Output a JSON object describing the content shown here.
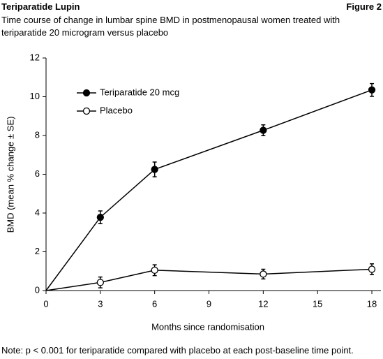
{
  "header": {
    "title": "Teriparatide Lupin",
    "figure": "Figure 2"
  },
  "chart_data": {
    "type": "line",
    "title": "Time course of change in lumbar spine BMD in postmenopausal women treated with teriparatide 20 microgram versus placebo",
    "xlabel": "Months since randomisation",
    "ylabel": "BMD (mean % change ± SE)",
    "x": [
      0,
      3,
      6,
      12,
      18
    ],
    "series": [
      {
        "name": "Teriparatide 20 mcg",
        "color": "#000000",
        "marker_fill": "#000000",
        "values": [
          0,
          3.78,
          6.25,
          8.27,
          10.35
        ],
        "errors": [
          null,
          0.33,
          0.38,
          0.28,
          0.33
        ]
      },
      {
        "name": "Placebo",
        "color": "#000000",
        "marker_fill": "#ffffff",
        "values": [
          0,
          0.42,
          1.05,
          0.85,
          1.1
        ],
        "errors": [
          null,
          0.28,
          0.28,
          0.25,
          0.28
        ]
      }
    ],
    "xlim": [
      0,
      18.5
    ],
    "xticks": [
      0,
      3,
      6,
      9,
      12,
      15,
      18
    ],
    "ylim": [
      0,
      12
    ],
    "yticks": [
      0,
      2,
      4,
      6,
      8,
      10,
      12
    ],
    "grid": false,
    "legend": "upper left"
  },
  "footnote": "Note: p < 0.001 for teriparatide compared with placebo at each post-baseline time point."
}
